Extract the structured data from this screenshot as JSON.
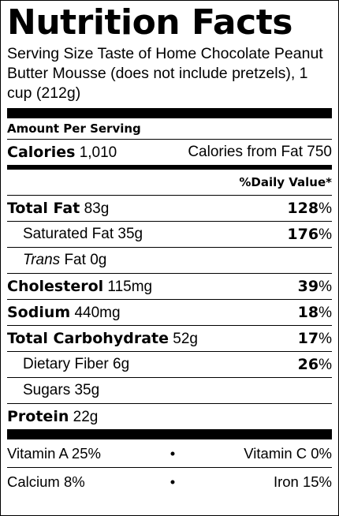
{
  "title": "Nutrition Facts",
  "serving_size": "Serving Size Taste of Home Chocolate Peanut Butter Mousse (does not include pretzels), 1 cup (212g)",
  "amount_per_serving": "Amount Per Serving",
  "calories": {
    "label": "Calories",
    "value": "1,010"
  },
  "calories_from_fat": {
    "label": "Calories from Fat",
    "value": "750"
  },
  "daily_value_header": "%Daily Value*",
  "nutrients": [
    {
      "label": "Total Fat",
      "amount": "83g",
      "pct_num": "128",
      "pct_sign": "%"
    },
    {
      "label": "Saturated Fat",
      "amount": "35g",
      "pct_num": "176",
      "pct_sign": "%"
    },
    {
      "label_italic": "Trans",
      "label": "Fat",
      "amount": "0g"
    },
    {
      "label": "Cholesterol",
      "amount": "115mg",
      "pct_num": "39",
      "pct_sign": "%"
    },
    {
      "label": "Sodium",
      "amount": "440mg",
      "pct_num": "18",
      "pct_sign": "%"
    },
    {
      "label": "Total Carbohydrate",
      "amount": "52g",
      "pct_num": "17",
      "pct_sign": "%"
    },
    {
      "label": "Dietary Fiber",
      "amount": "6g",
      "pct_num": "26",
      "pct_sign": "%"
    },
    {
      "label": "Sugars",
      "amount": "35g"
    },
    {
      "label": "Protein",
      "amount": "22g"
    }
  ],
  "vitamins": [
    {
      "left": "Vitamin A 25%",
      "dot": "•",
      "right": "Vitamin C 0%"
    },
    {
      "left": "Calcium 8%",
      "dot": "•",
      "right": "Iron 15%"
    }
  ]
}
